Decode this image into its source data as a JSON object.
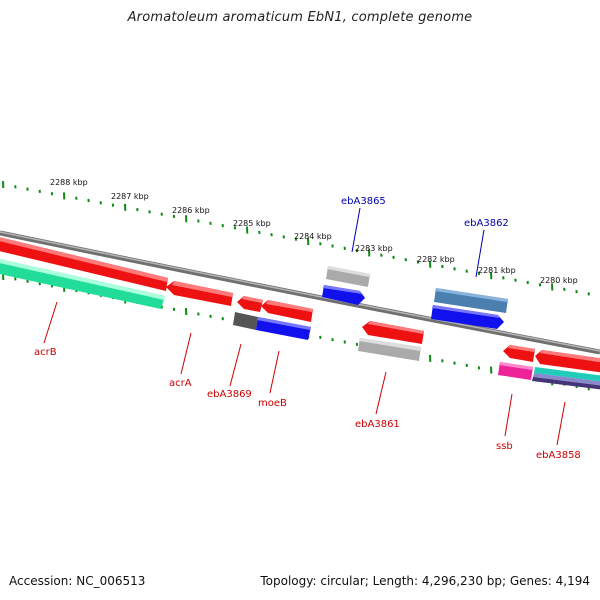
{
  "title": "Aromatoleum aromaticum EbN1, complete genome",
  "footer": {
    "accession": "Accession: NC_006513",
    "summary": "Topology: circular; Length: 4,296,230 bp; Genes: 4,194"
  },
  "colors": {
    "forward_gene": "#ee1111",
    "reverse_cds": "#1111ee",
    "tick_marks": "#118811",
    "backbone": "#888888",
    "label_forward": "#cc0000",
    "label_reverse": "#0000aa"
  },
  "scale": {
    "unit": "kbp",
    "labels": [
      "2288 kbp",
      "2287 kbp",
      "2286 kbp",
      "2285 kbp",
      "2284 kbp",
      "2283 kbp",
      "2282 kbp",
      "2281 kbp",
      "2280 kbp"
    ]
  },
  "genes": [
    {
      "label": "acrB",
      "color": "red"
    },
    {
      "label": "acrA",
      "color": "red"
    },
    {
      "label": "ebA3869",
      "color": "red"
    },
    {
      "label": "moeB",
      "color": "red"
    },
    {
      "label": "ebA3865",
      "color": "blue"
    },
    {
      "label": "ebA3861",
      "color": "red"
    },
    {
      "label": "ebA3862",
      "color": "blue"
    },
    {
      "label": "ssb",
      "color": "red"
    },
    {
      "label": "ebA3858",
      "color": "red"
    }
  ]
}
